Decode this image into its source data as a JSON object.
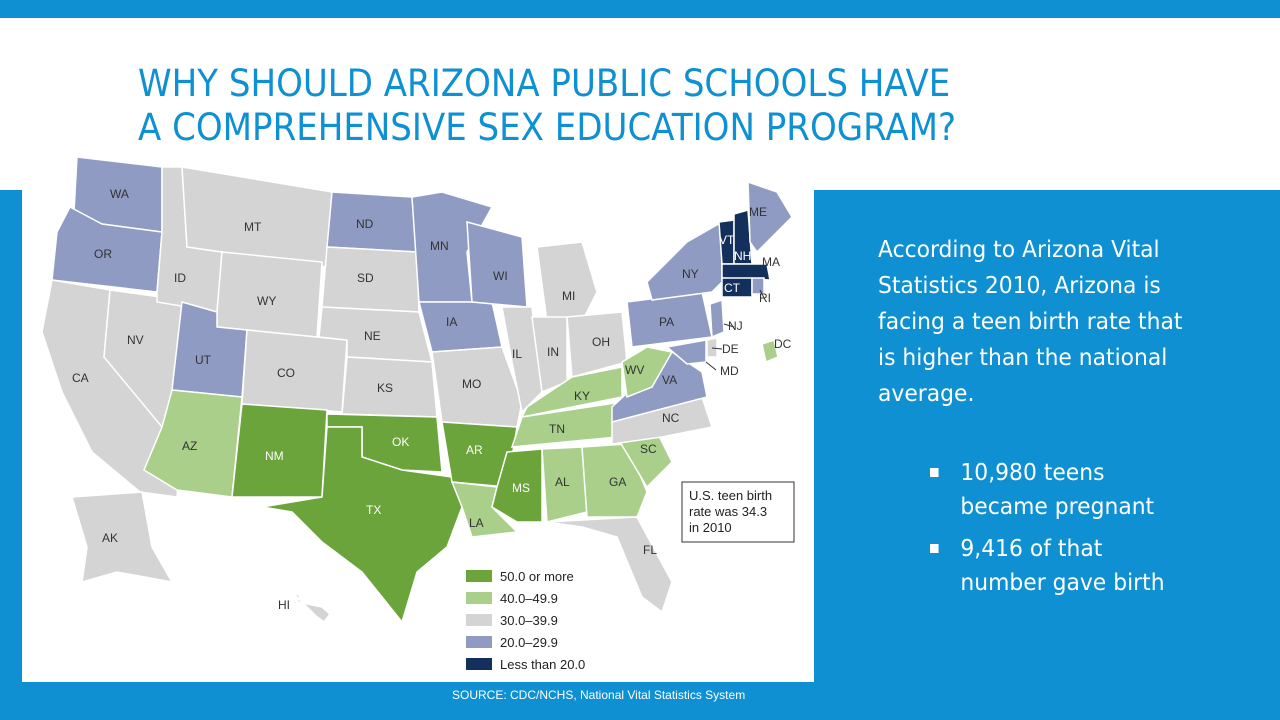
{
  "slide": {
    "title": "WHY SHOULD ARIZONA PUBLIC SCHOOLS HAVE A COMPREHENSIVE SEX EDUCATION PROGRAM?",
    "title_line1": "WHY SHOULD ARIZONA PUBLIC SCHOOLS HAVE",
    "title_line2": "A COMPREHENSIVE SEX EDUCATION PROGRAM?",
    "body": "According to Arizona Vital Statistics 2010, Arizona is facing a teen birth rate that is higher than the national average.",
    "bullets": [
      "10,980 teens became pregnant",
      "9,416 of that number gave birth"
    ],
    "source": "SOURCE: CDC/NCHS, National Vital Statistics System"
  },
  "colors": {
    "brand_blue": "#0e90d2",
    "rate_50_plus": "#6aa43a",
    "rate_40_49": "#a9cf8a",
    "rate_30_39": "#d4d4d4",
    "rate_20_29": "#8f9bc2",
    "rate_under_20": "#13305c"
  },
  "map": {
    "callout": [
      "U.S. teen birth",
      "rate was 34.3",
      "in 2010"
    ],
    "legend": [
      {
        "label": "50.0 or more",
        "key": "rate_50_plus"
      },
      {
        "label": "40.0–49.9",
        "key": "rate_40_49"
      },
      {
        "label": "30.0–39.9",
        "key": "rate_30_39"
      },
      {
        "label": "20.0–29.9",
        "key": "rate_20_29"
      },
      {
        "label": "Less than 20.0",
        "key": "rate_under_20"
      }
    ],
    "states": {
      "WA": "rate_20_29",
      "OR": "rate_20_29",
      "CA": "rate_30_39",
      "NV": "rate_30_39",
      "ID": "rate_30_39",
      "MT": "rate_30_39",
      "WY": "rate_30_39",
      "UT": "rate_20_29",
      "AZ": "rate_40_49",
      "CO": "rate_30_39",
      "NM": "rate_50_plus",
      "ND": "rate_20_29",
      "SD": "rate_30_39",
      "NE": "rate_30_39",
      "KS": "rate_30_39",
      "OK": "rate_50_plus",
      "TX": "rate_50_plus",
      "MN": "rate_20_29",
      "IA": "rate_20_29",
      "MO": "rate_30_39",
      "AR": "rate_50_plus",
      "LA": "rate_40_49",
      "WI": "rate_20_29",
      "IL": "rate_30_39",
      "MI": "rate_30_39",
      "IN": "rate_30_39",
      "OH": "rate_30_39",
      "KY": "rate_40_49",
      "TN": "rate_40_49",
      "MS": "rate_50_plus",
      "AL": "rate_40_49",
      "GA": "rate_40_49",
      "FL": "rate_30_39",
      "SC": "rate_40_49",
      "NC": "rate_30_39",
      "VA": "rate_20_29",
      "WV": "rate_40_49",
      "PA": "rate_20_29",
      "NY": "rate_20_29",
      "VT": "rate_under_20",
      "NH": "rate_under_20",
      "ME": "rate_20_29",
      "MA": "rate_under_20",
      "CT": "rate_under_20",
      "RI": "rate_20_29",
      "NJ": "rate_20_29",
      "DE": "rate_30_39",
      "MD": "rate_20_29",
      "DC": "rate_40_49",
      "AK": "rate_30_39",
      "HI": "rate_30_39"
    }
  }
}
